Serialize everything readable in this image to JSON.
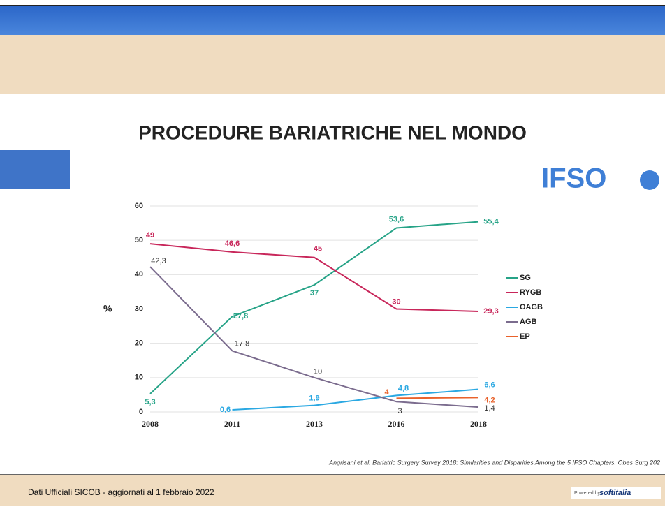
{
  "chart_data": {
    "type": "line",
    "title": "PROCEDURE BARIATRICHE NEL MONDO",
    "y_label": "%",
    "categories": [
      "2008",
      "2011",
      "2013",
      "2016",
      "2018"
    ],
    "ylim": [
      0,
      60
    ],
    "yticks": [
      0,
      10,
      20,
      30,
      40,
      50,
      60
    ],
    "grid": true,
    "legend": "right",
    "series": [
      {
        "name": "SG",
        "color": "#26a387",
        "values": [
          5.3,
          27.8,
          37,
          53.6,
          55.4
        ],
        "value_labels": [
          "5,3",
          "27,8",
          "37",
          "53,6",
          "55,4"
        ]
      },
      {
        "name": "RYGB",
        "color": "#c8265a",
        "values": [
          49,
          46.6,
          45,
          30,
          29.3
        ],
        "value_labels": [
          "49",
          "46,6",
          "45",
          "30",
          "29,3"
        ]
      },
      {
        "name": "OAGB",
        "color": "#2aa8e2",
        "values": [
          null,
          0.6,
          1.9,
          4.8,
          6.6
        ],
        "value_labels": [
          null,
          "0,6",
          "1,9",
          "4,8",
          "6,6"
        ]
      },
      {
        "name": "AGB",
        "color": "#7b6c8e",
        "values": [
          42.3,
          17.8,
          10,
          3,
          1.4
        ],
        "value_labels": [
          "42,3",
          "17,8",
          "10",
          "3",
          "1,4"
        ]
      },
      {
        "name": "EP",
        "color": "#e9622b",
        "values": [
          null,
          null,
          null,
          4,
          4.2
        ],
        "value_labels": [
          null,
          null,
          null,
          "4",
          "4,2"
        ]
      }
    ]
  },
  "logo": "IFSO",
  "citation": "Angrisani  et al. Bariatric Surgery Survey 2018: Similarities and Disparities Among the 5 IFSO Chapters. Obes Surg 202",
  "footer": {
    "text": "Dati Ufficiali SICOB - aggiornati al 1 febbraio 2022",
    "powered": "Powered by",
    "brand": "softitalia"
  }
}
